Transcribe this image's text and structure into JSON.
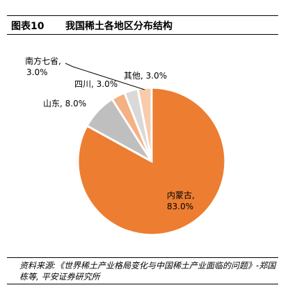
{
  "figure": {
    "label": "图表10",
    "title": "我国稀土各地区分布结构"
  },
  "chart_data": {
    "type": "pie",
    "title": "我国稀土各地区分布结构",
    "slices": [
      {
        "name": "内蒙古",
        "value": 83.0,
        "label_line1": "内蒙古,",
        "label_line2": "83.0%",
        "color": "#ED7D31"
      },
      {
        "name": "山东",
        "value": 8.0,
        "label_line1": "山东, 8.0%",
        "label_line2": "",
        "color": "#BFBFBF"
      },
      {
        "name": "四川",
        "value": 3.0,
        "label_line1": "四川, 3.0%",
        "label_line2": "",
        "color": "#F4B183"
      },
      {
        "name": "南方七省",
        "value": 3.0,
        "label_line1": "南方七省,",
        "label_line2": "3.0%",
        "color": "#D9D9D9"
      },
      {
        "name": "其他",
        "value": 3.0,
        "label_line1": "其他, 3.0%",
        "label_line2": "",
        "color": "#F8CBAD"
      }
    ]
  },
  "source": {
    "text": "资料来源:《世界稀土产业格局变化与中国稀土产业面临的问题》-郑国栋等, 平安证券研究所"
  }
}
